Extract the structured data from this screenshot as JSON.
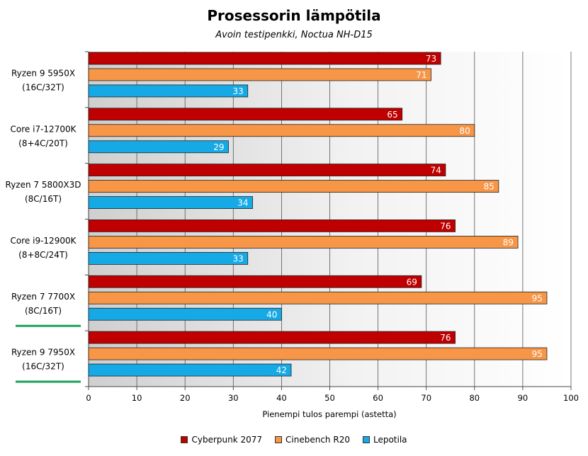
{
  "chart_data": {
    "type": "bar",
    "orientation": "horizontal",
    "title": "Prosessorin lämpötila",
    "subtitle": "Avoin testipenkki, Noctua NH-D15",
    "xlabel": "Pienempi tulos parempi (astetta)",
    "xlim": [
      0,
      100
    ],
    "xticks": [
      0,
      10,
      20,
      30,
      40,
      50,
      60,
      70,
      80,
      90,
      100
    ],
    "grid": true,
    "legend_position": "bottom",
    "categories": [
      [
        "Ryzen 9 5950X",
        "(16C/32T)"
      ],
      [
        "Core i7-12700K",
        "(8+4C/20T)"
      ],
      [
        "Ryzen 7 5800X3D",
        "(8C/16T)"
      ],
      [
        "Core i9-12900K",
        "(8+8C/24T)"
      ],
      [
        "Ryzen 7 7700X",
        "(8C/16T)"
      ],
      [
        "Ryzen 9 7950X",
        "(16C/32T)"
      ]
    ],
    "highlighted_categories": [
      4,
      5
    ],
    "highlight_color": "#1fa35a",
    "series": [
      {
        "name": "Cyberpunk 2077",
        "color": "#c00000",
        "values": [
          73,
          65,
          74,
          76,
          69,
          76
        ]
      },
      {
        "name": "Cinebench R20",
        "color": "#f79646",
        "values": [
          71,
          80,
          85,
          89,
          95,
          95
        ]
      },
      {
        "name": "Lepotila",
        "color": "#15a9e6",
        "values": [
          33,
          29,
          34,
          33,
          40,
          42
        ]
      }
    ]
  }
}
